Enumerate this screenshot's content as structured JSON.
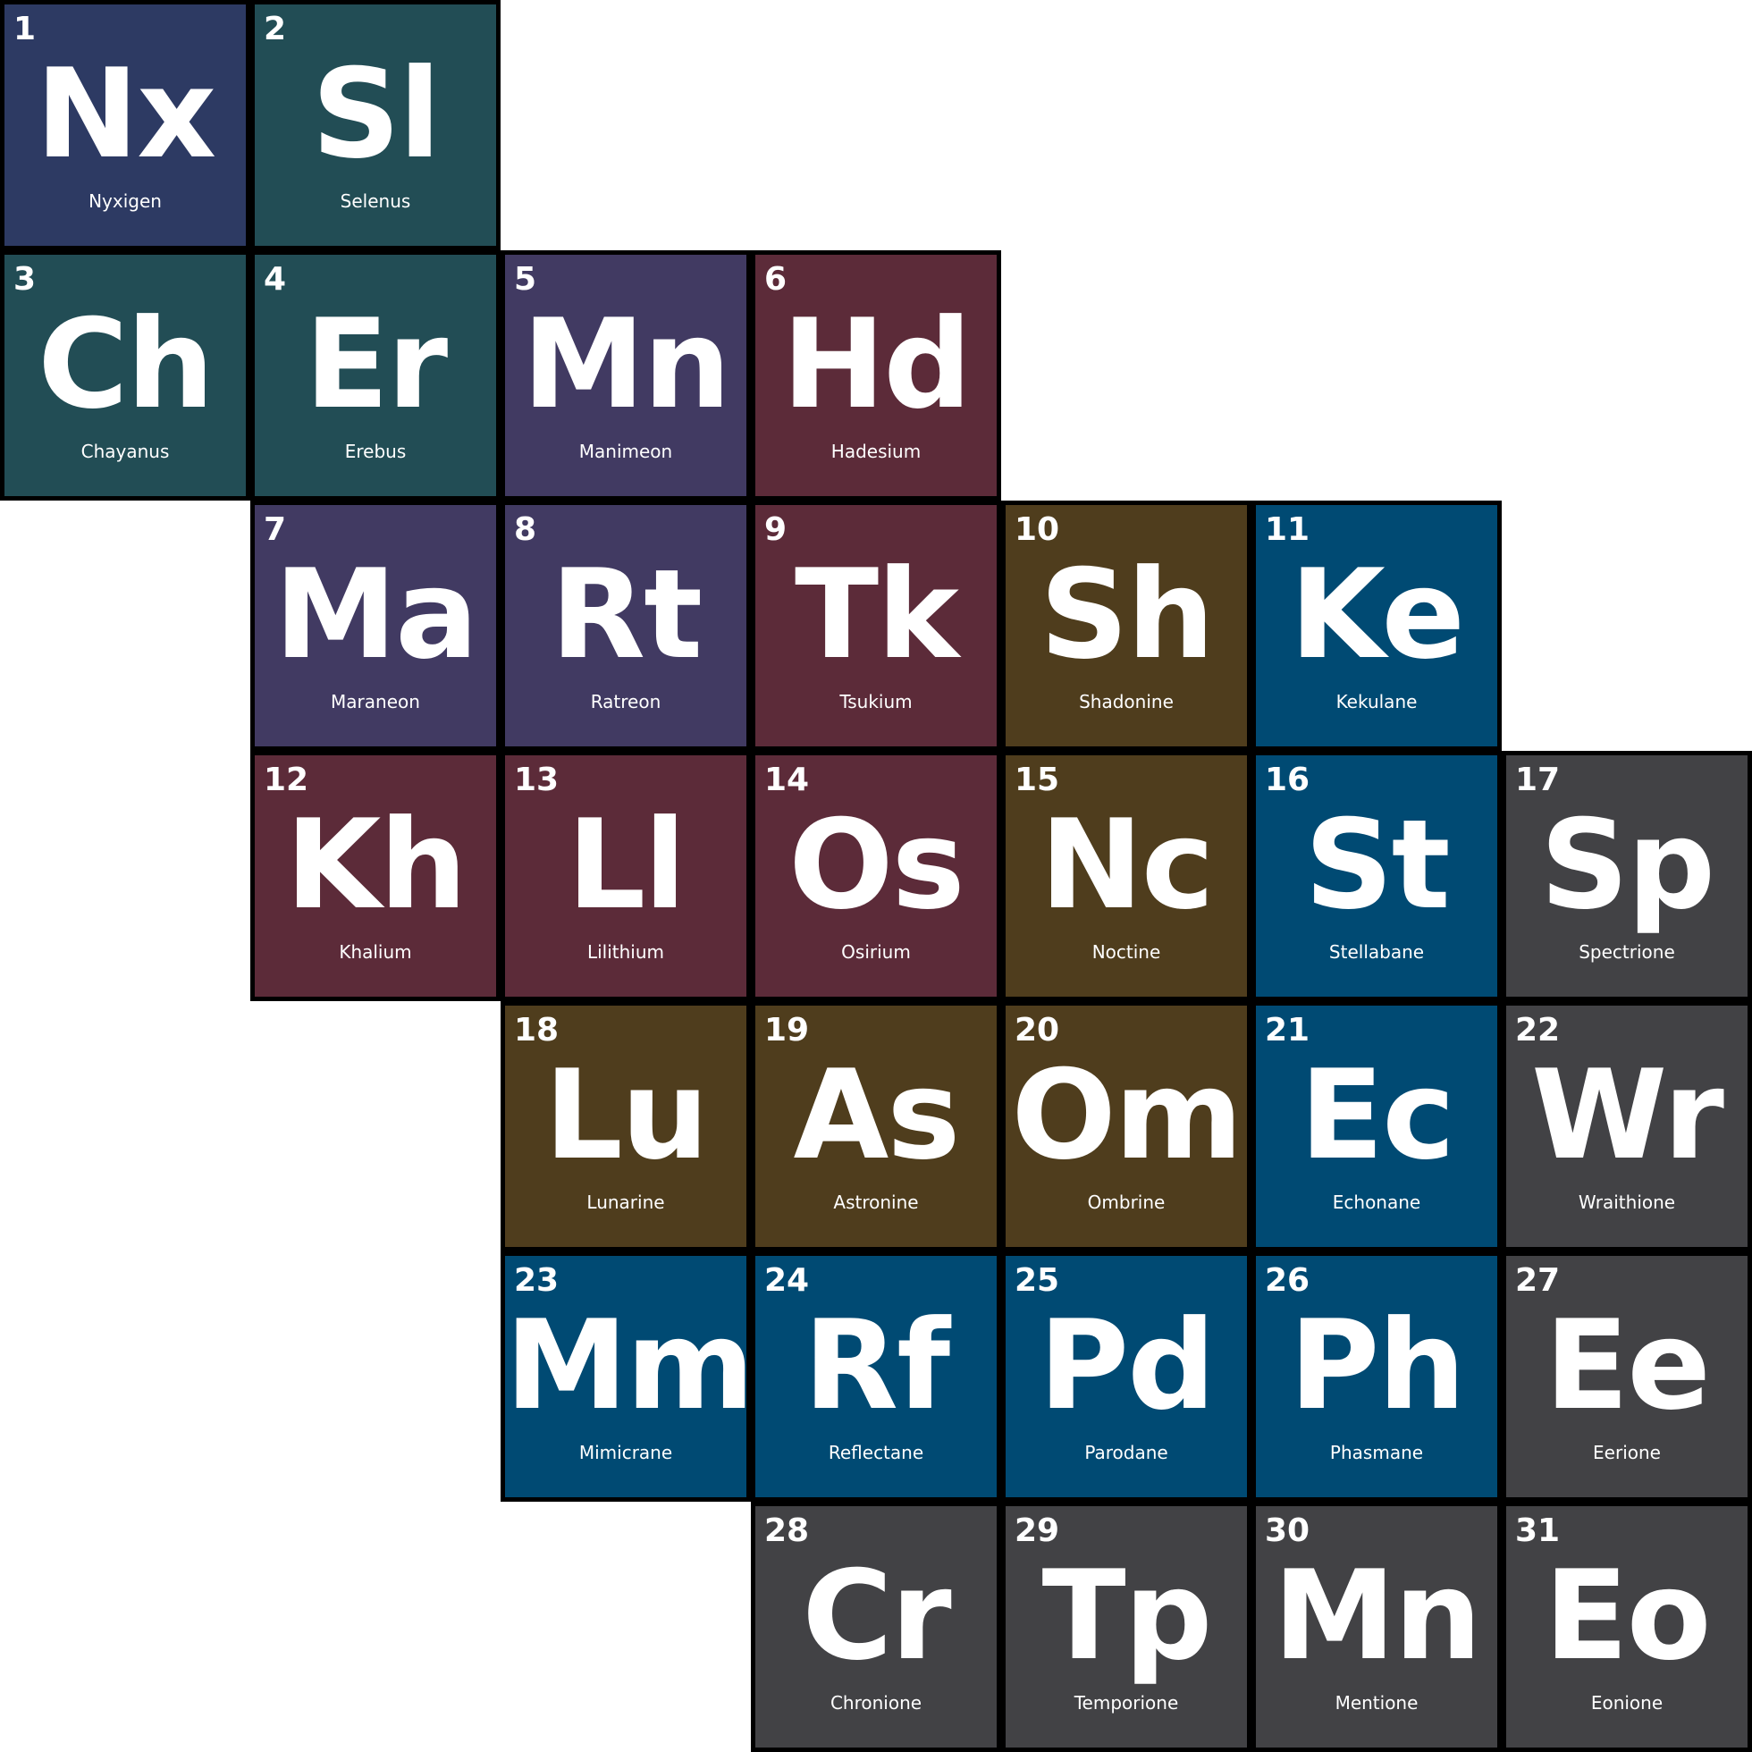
{
  "palette": {
    "navy": "#2D3A63",
    "teal": "#224D55",
    "purple": "#413A62",
    "maroon": "#5C2B39",
    "olive": "#4F3D1D",
    "blue": "#004A73",
    "gray": "#424245",
    "border": "#000000",
    "text": "#FFFFFF"
  },
  "elements": [
    {
      "number": "1",
      "symbol": "Nx",
      "name": "Nyxigen",
      "color": "navy"
    },
    {
      "number": "2",
      "symbol": "Sl",
      "name": "Selenus",
      "color": "teal"
    },
    {
      "number": "3",
      "symbol": "Ch",
      "name": "Chayanus",
      "color": "teal"
    },
    {
      "number": "4",
      "symbol": "Er",
      "name": "Erebus",
      "color": "teal"
    },
    {
      "number": "5",
      "symbol": "Mn",
      "name": "Manimeon",
      "color": "purple"
    },
    {
      "number": "6",
      "symbol": "Hd",
      "name": "Hadesium",
      "color": "maroon"
    },
    {
      "number": "7",
      "symbol": "Ma",
      "name": "Maraneon",
      "color": "purple"
    },
    {
      "number": "8",
      "symbol": "Rt",
      "name": "Ratreon",
      "color": "purple"
    },
    {
      "number": "9",
      "symbol": "Tk",
      "name": "Tsukium",
      "color": "maroon"
    },
    {
      "number": "10",
      "symbol": "Sh",
      "name": "Shadonine",
      "color": "olive"
    },
    {
      "number": "11",
      "symbol": "Ke",
      "name": "Kekulane",
      "color": "blue"
    },
    {
      "number": "12",
      "symbol": "Kh",
      "name": "Khalium",
      "color": "maroon"
    },
    {
      "number": "13",
      "symbol": "Ll",
      "name": "Lilithium",
      "color": "maroon"
    },
    {
      "number": "14",
      "symbol": "Os",
      "name": "Osirium",
      "color": "maroon"
    },
    {
      "number": "15",
      "symbol": "Nc",
      "name": "Noctine",
      "color": "olive"
    },
    {
      "number": "16",
      "symbol": "St",
      "name": "Stellabane",
      "color": "blue"
    },
    {
      "number": "17",
      "symbol": "Sp",
      "name": "Spectrione",
      "color": "gray"
    },
    {
      "number": "18",
      "symbol": "Lu",
      "name": "Lunarine",
      "color": "olive"
    },
    {
      "number": "19",
      "symbol": "As",
      "name": "Astronine",
      "color": "olive"
    },
    {
      "number": "20",
      "symbol": "Om",
      "name": "Ombrine",
      "color": "olive"
    },
    {
      "number": "21",
      "symbol": "Ec",
      "name": "Echonane",
      "color": "blue"
    },
    {
      "number": "22",
      "symbol": "Wr",
      "name": "Wraithione",
      "color": "gray"
    },
    {
      "number": "23",
      "symbol": "Mm",
      "name": "Mimicrane",
      "color": "blue"
    },
    {
      "number": "24",
      "symbol": "Rf",
      "name": "Reflectane",
      "color": "blue"
    },
    {
      "number": "25",
      "symbol": "Pd",
      "name": "Parodane",
      "color": "blue"
    },
    {
      "number": "26",
      "symbol": "Ph",
      "name": "Phasmane",
      "color": "blue"
    },
    {
      "number": "27",
      "symbol": "Ee",
      "name": "Eerione",
      "color": "gray"
    },
    {
      "number": "28",
      "symbol": "Cr",
      "name": "Chronione",
      "color": "gray"
    },
    {
      "number": "29",
      "symbol": "Tp",
      "name": "Temporione",
      "color": "gray"
    },
    {
      "number": "30",
      "symbol": "Mn",
      "name": "Mentione",
      "color": "gray"
    },
    {
      "number": "31",
      "symbol": "Eo",
      "name": "Eonione",
      "color": "gray"
    }
  ]
}
